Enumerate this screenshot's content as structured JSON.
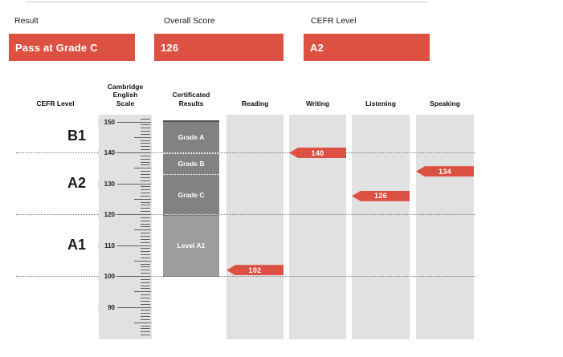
{
  "colors": {
    "accent": "#dd5143",
    "column_bg": "#e1e1e1",
    "grade_band": "#828282",
    "level_band": "#9d9d9d",
    "tick": "#5f5f5f",
    "dotted_line": "#7a7a7a"
  },
  "summary": {
    "fields": [
      {
        "label": "Result",
        "value": "Pass at Grade C"
      },
      {
        "label": "Overall Score",
        "value": "126"
      },
      {
        "label": "CEFR Level",
        "value": "A2"
      }
    ]
  },
  "chart_data": {
    "type": "scale-ruler-chart",
    "column_headers": [
      "CEFR Level",
      "Cambridge\nEnglish\nScale",
      "Certificated\nResults",
      "Reading",
      "Writing",
      "Listening",
      "Speaking"
    ],
    "scale": {
      "axis_label_values": [
        150,
        140,
        130,
        120,
        110,
        100,
        90
      ],
      "tick_max": 151,
      "tick_min": 81,
      "boundary_lines": [
        140,
        120,
        100
      ]
    },
    "cefr_bands": [
      {
        "label": "B1",
        "from": 140,
        "to": 152
      },
      {
        "label": "A2",
        "from": 120,
        "to": 140
      },
      {
        "label": "A1",
        "from": 100,
        "to": 120
      }
    ],
    "certificated_bands": [
      {
        "label": "Grade A",
        "from": 140,
        "to": 150.6,
        "style": "grade",
        "top_edge": "solid"
      },
      {
        "label": "Grade B",
        "from": 133,
        "to": 140,
        "style": "grade",
        "top_edge": "dotted-white"
      },
      {
        "label": "Grade C",
        "from": 120,
        "to": 133,
        "style": "grade",
        "top_edge": "dotted-white"
      },
      {
        "label": "Level A1",
        "from": 100,
        "to": 120,
        "style": "level",
        "top_edge": "dotted-dark",
        "bottom_edge": "dotted-dark"
      }
    ],
    "skills": [
      {
        "name": "Reading",
        "score": 102
      },
      {
        "name": "Writing",
        "score": 140
      },
      {
        "name": "Listening",
        "score": 126
      },
      {
        "name": "Speaking",
        "score": 134
      }
    ]
  }
}
